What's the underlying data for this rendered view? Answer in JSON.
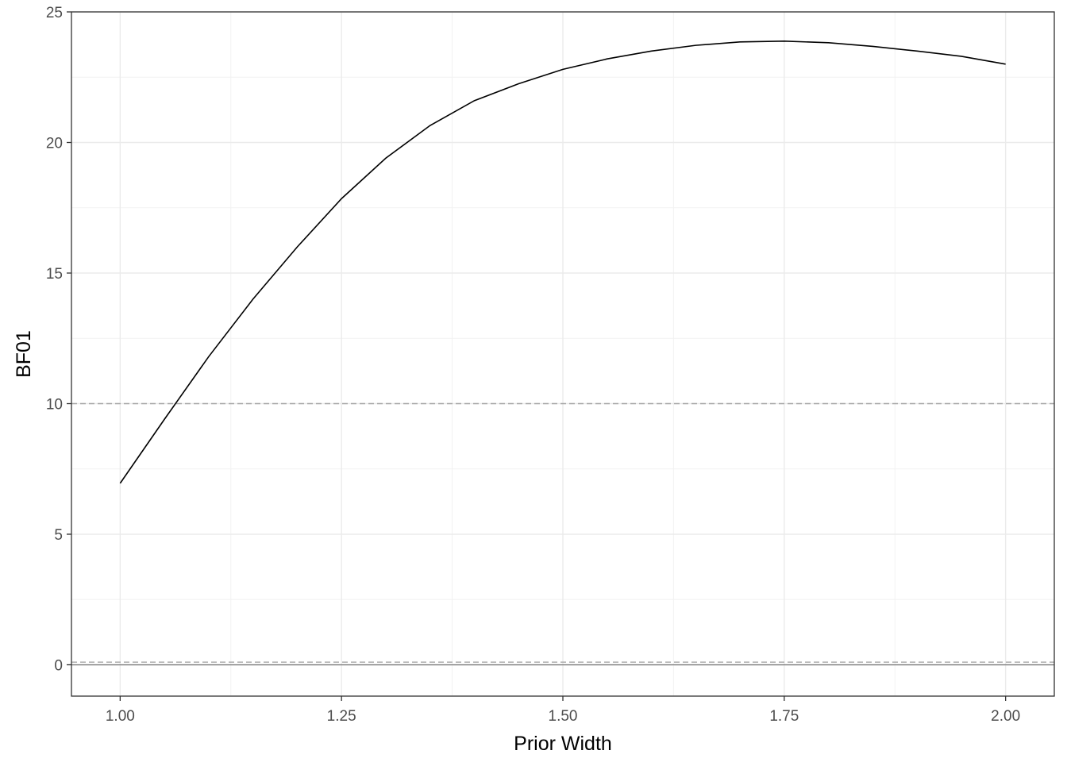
{
  "chart_data": {
    "type": "line",
    "title": "",
    "xlabel": "Prior Width",
    "ylabel": "BF01",
    "xlim": [
      0.945,
      2.055
    ],
    "ylim": [
      -1.2,
      25.0
    ],
    "x_ticks": [
      1.0,
      1.25,
      1.5,
      1.75,
      2.0
    ],
    "x_tick_labels": [
      "1.00",
      "1.25",
      "1.50",
      "1.75",
      "2.00"
    ],
    "y_ticks": [
      0,
      5,
      10,
      15,
      20,
      25
    ],
    "y_tick_labels": [
      "0",
      "5",
      "10",
      "15",
      "20",
      "25"
    ],
    "grid": true,
    "theme": "bw",
    "series": [
      {
        "color": "#000000",
        "x": [
          1.0,
          1.05,
          1.1,
          1.15,
          1.2,
          1.25,
          1.3,
          1.35,
          1.4,
          1.45,
          1.5,
          1.55,
          1.6,
          1.65,
          1.7,
          1.75,
          1.8,
          1.85,
          1.9,
          1.95,
          2.0
        ],
        "y": [
          6.95,
          9.4,
          11.8,
          14.0,
          16.0,
          17.85,
          19.4,
          20.65,
          21.6,
          22.25,
          22.8,
          23.2,
          23.5,
          23.72,
          23.85,
          23.88,
          23.82,
          23.68,
          23.5,
          23.3,
          23.0
        ]
      }
    ],
    "reference_lines": [
      {
        "y": 10,
        "style": "dashed",
        "color": "#a6a6a6"
      },
      {
        "y": 0.1,
        "style": "dashed",
        "color": "#a6a6a6"
      },
      {
        "y": 0,
        "style": "solid",
        "color": "#7f7f7f"
      }
    ]
  }
}
